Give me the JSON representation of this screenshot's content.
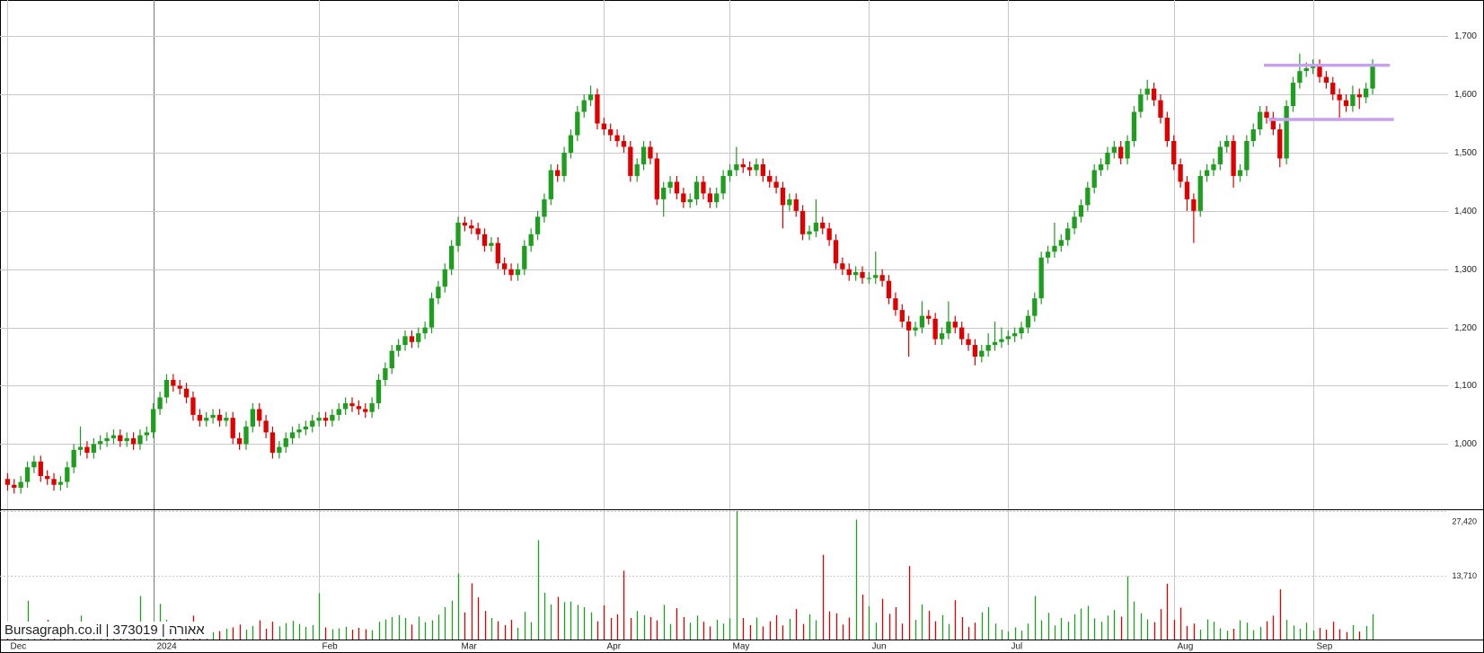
{
  "chart_data": [
    {
      "type": "candlestick",
      "watermark": "Bursagraph.co.il | 373019 | אאורה",
      "xlim": [
        -1.14,
        222.4
      ],
      "xticks": [
        {
          "value": 0,
          "label": "Dec"
        },
        {
          "value": 22,
          "label": "2024"
        },
        {
          "value": 47,
          "label": "Feb"
        },
        {
          "value": 68,
          "label": "Mar"
        },
        {
          "value": 90,
          "label": "Apr"
        },
        {
          "value": 109,
          "label": "May"
        },
        {
          "value": 130,
          "label": "Jun"
        },
        {
          "value": 151,
          "label": "Jul"
        },
        {
          "value": 176,
          "label": "Aug"
        },
        {
          "value": 197,
          "label": "Sep"
        }
      ],
      "ylim": [
        888,
        1762
      ],
      "yticks": [
        {
          "value": 1000,
          "label": "1,000"
        },
        {
          "value": 1100,
          "label": "1,100"
        },
        {
          "value": 1200,
          "label": "1,200"
        },
        {
          "value": 1300,
          "label": "1,300"
        },
        {
          "value": 1400,
          "label": "1,400"
        },
        {
          "value": 1500,
          "label": "1,500"
        },
        {
          "value": 1600,
          "label": "1,600"
        },
        {
          "value": 1700,
          "label": "1,700"
        }
      ],
      "grid": true,
      "up_color": "#1e9e1e",
      "down_color": "#e00000",
      "level_color": "#c8a0f0",
      "levels": [
        {
          "value": 1650,
          "from": 189.6,
          "to": 208.6
        },
        {
          "value": 1557,
          "from": 190.3,
          "to": 209.2
        }
      ],
      "open": [
        940,
        930,
        925,
        935,
        960,
        970,
        945,
        940,
        930,
        935,
        960,
        990,
        995,
        985,
        1000,
        1005,
        1010,
        1015,
        1005,
        1010,
        1000,
        1015,
        1020,
        1060,
        1080,
        1110,
        1100,
        1095,
        1080,
        1050,
        1040,
        1045,
        1050,
        1040,
        1045,
        1010,
        1000,
        1030,
        1060,
        1040,
        1020,
        985,
        995,
        1010,
        1020,
        1025,
        1030,
        1040,
        1045,
        1040,
        1050,
        1060,
        1070,
        1065,
        1060,
        1055,
        1070,
        1110,
        1130,
        1160,
        1170,
        1185,
        1175,
        1190,
        1200,
        1250,
        1270,
        1300,
        1340,
        1380,
        1375,
        1370,
        1360,
        1340,
        1345,
        1310,
        1300,
        1290,
        1300,
        1340,
        1360,
        1390,
        1420,
        1470,
        1460,
        1500,
        1530,
        1570,
        1590,
        1600,
        1550,
        1540,
        1530,
        1520,
        1510,
        1460,
        1480,
        1510,
        1490,
        1420,
        1440,
        1450,
        1430,
        1415,
        1420,
        1450,
        1430,
        1415,
        1430,
        1460,
        1470,
        1480,
        1475,
        1470,
        1480,
        1460,
        1450,
        1440,
        1410,
        1420,
        1400,
        1360,
        1365,
        1380,
        1370,
        1350,
        1310,
        1300,
        1290,
        1295,
        1285,
        1285,
        1290,
        1280,
        1250,
        1230,
        1210,
        1195,
        1200,
        1220,
        1215,
        1180,
        1190,
        1210,
        1200,
        1180,
        1170,
        1150,
        1160,
        1170,
        1175,
        1180,
        1185,
        1190,
        1200,
        1220,
        1250,
        1320,
        1330,
        1340,
        1350,
        1370,
        1390,
        1410,
        1440,
        1470,
        1480,
        1500,
        1510,
        1490,
        1520,
        1570,
        1600,
        1610,
        1590,
        1560,
        1520,
        1480,
        1450,
        1420,
        1400,
        1460,
        1470,
        1480,
        1510,
        1520,
        1460,
        1470,
        1520,
        1540,
        1570,
        1560,
        1540,
        1490,
        1580,
        1620,
        1640,
        1645,
        1650,
        1630,
        1620,
        1600,
        1590,
        1580,
        1600,
        1595,
        1610
      ],
      "high": [
        950,
        940,
        945,
        970,
        980,
        980,
        955,
        950,
        945,
        970,
        1000,
        1030,
        1005,
        1010,
        1015,
        1020,
        1025,
        1025,
        1020,
        1020,
        1025,
        1030,
        1070,
        1090,
        1120,
        1120,
        1110,
        1105,
        1090,
        1060,
        1055,
        1060,
        1060,
        1055,
        1055,
        1020,
        1040,
        1070,
        1070,
        1050,
        1030,
        1005,
        1020,
        1030,
        1035,
        1040,
        1050,
        1055,
        1055,
        1060,
        1070,
        1080,
        1080,
        1075,
        1070,
        1080,
        1120,
        1140,
        1170,
        1180,
        1195,
        1195,
        1200,
        1210,
        1260,
        1280,
        1310,
        1350,
        1390,
        1390,
        1385,
        1380,
        1370,
        1355,
        1355,
        1320,
        1310,
        1310,
        1350,
        1370,
        1400,
        1430,
        1480,
        1480,
        1510,
        1540,
        1580,
        1600,
        1615,
        1610,
        1560,
        1550,
        1540,
        1530,
        1520,
        1490,
        1520,
        1520,
        1500,
        1450,
        1460,
        1460,
        1440,
        1430,
        1460,
        1460,
        1440,
        1440,
        1470,
        1480,
        1510,
        1490,
        1485,
        1490,
        1490,
        1470,
        1460,
        1450,
        1430,
        1430,
        1410,
        1375,
        1420,
        1390,
        1380,
        1360,
        1320,
        1310,
        1305,
        1305,
        1295,
        1330,
        1300,
        1290,
        1260,
        1240,
        1220,
        1210,
        1245,
        1230,
        1225,
        1200,
        1245,
        1220,
        1210,
        1190,
        1180,
        1170,
        1190,
        1210,
        1200,
        1195,
        1200,
        1210,
        1230,
        1260,
        1330,
        1340,
        1380,
        1360,
        1380,
        1400,
        1420,
        1450,
        1480,
        1490,
        1510,
        1520,
        1520,
        1530,
        1580,
        1610,
        1625,
        1620,
        1600,
        1570,
        1530,
        1490,
        1460,
        1430,
        1470,
        1480,
        1490,
        1520,
        1530,
        1530,
        1480,
        1530,
        1550,
        1580,
        1580,
        1570,
        1550,
        1590,
        1630,
        1670,
        1655,
        1660,
        1660,
        1640,
        1630,
        1610,
        1600,
        1615,
        1610,
        1620,
        1660
      ],
      "low": [
        920,
        915,
        915,
        925,
        950,
        935,
        930,
        920,
        920,
        925,
        950,
        980,
        975,
        975,
        990,
        995,
        1000,
        995,
        995,
        990,
        990,
        1005,
        1010,
        1050,
        1070,
        1090,
        1085,
        1070,
        1040,
        1030,
        1030,
        1035,
        1030,
        1030,
        1000,
        990,
        990,
        1020,
        1030,
        1010,
        975,
        975,
        985,
        1000,
        1010,
        1015,
        1020,
        1030,
        1030,
        1030,
        1040,
        1050,
        1055,
        1050,
        1045,
        1045,
        1060,
        1100,
        1120,
        1150,
        1160,
        1165,
        1165,
        1180,
        1190,
        1240,
        1260,
        1290,
        1330,
        1365,
        1360,
        1350,
        1330,
        1330,
        1300,
        1290,
        1280,
        1280,
        1290,
        1330,
        1350,
        1380,
        1410,
        1450,
        1450,
        1490,
        1520,
        1560,
        1580,
        1540,
        1530,
        1520,
        1510,
        1500,
        1450,
        1450,
        1470,
        1480,
        1410,
        1390,
        1430,
        1420,
        1405,
        1405,
        1410,
        1420,
        1405,
        1405,
        1420,
        1450,
        1460,
        1465,
        1460,
        1460,
        1450,
        1440,
        1430,
        1370,
        1400,
        1390,
        1350,
        1350,
        1355,
        1360,
        1340,
        1300,
        1290,
        1280,
        1280,
        1275,
        1275,
        1275,
        1270,
        1240,
        1220,
        1200,
        1150,
        1185,
        1190,
        1205,
        1170,
        1170,
        1180,
        1190,
        1170,
        1160,
        1135,
        1140,
        1150,
        1160,
        1165,
        1170,
        1175,
        1180,
        1190,
        1210,
        1240,
        1310,
        1320,
        1330,
        1340,
        1360,
        1380,
        1400,
        1430,
        1460,
        1470,
        1490,
        1480,
        1480,
        1510,
        1560,
        1590,
        1580,
        1550,
        1510,
        1470,
        1440,
        1400,
        1345,
        1390,
        1450,
        1460,
        1470,
        1500,
        1440,
        1450,
        1460,
        1510,
        1530,
        1550,
        1530,
        1475,
        1480,
        1570,
        1610,
        1630,
        1635,
        1620,
        1610,
        1590,
        1560,
        1570,
        1570,
        1575,
        1585,
        1600
      ],
      "close": [
        930,
        925,
        935,
        960,
        970,
        945,
        940,
        930,
        935,
        960,
        990,
        995,
        985,
        1000,
        1005,
        1010,
        1015,
        1005,
        1010,
        1000,
        1015,
        1020,
        1060,
        1080,
        1110,
        1100,
        1095,
        1080,
        1050,
        1040,
        1045,
        1050,
        1040,
        1045,
        1010,
        1000,
        1030,
        1060,
        1040,
        1020,
        985,
        995,
        1010,
        1020,
        1025,
        1030,
        1040,
        1045,
        1040,
        1050,
        1060,
        1070,
        1065,
        1060,
        1055,
        1070,
        1110,
        1130,
        1160,
        1170,
        1185,
        1175,
        1190,
        1200,
        1250,
        1270,
        1300,
        1340,
        1380,
        1375,
        1370,
        1360,
        1340,
        1345,
        1310,
        1300,
        1290,
        1300,
        1340,
        1360,
        1390,
        1420,
        1470,
        1460,
        1500,
        1530,
        1570,
        1590,
        1600,
        1550,
        1540,
        1530,
        1520,
        1510,
        1460,
        1480,
        1510,
        1490,
        1420,
        1440,
        1450,
        1430,
        1415,
        1420,
        1450,
        1430,
        1415,
        1430,
        1460,
        1470,
        1480,
        1475,
        1470,
        1480,
        1460,
        1450,
        1440,
        1410,
        1420,
        1400,
        1360,
        1365,
        1380,
        1370,
        1350,
        1310,
        1300,
        1290,
        1295,
        1285,
        1285,
        1290,
        1280,
        1250,
        1230,
        1210,
        1195,
        1200,
        1220,
        1215,
        1180,
        1190,
        1210,
        1200,
        1180,
        1170,
        1150,
        1160,
        1170,
        1175,
        1180,
        1185,
        1190,
        1200,
        1220,
        1250,
        1320,
        1330,
        1340,
        1350,
        1370,
        1390,
        1410,
        1440,
        1470,
        1480,
        1500,
        1510,
        1490,
        1520,
        1570,
        1600,
        1610,
        1590,
        1560,
        1520,
        1480,
        1450,
        1420,
        1400,
        1460,
        1470,
        1480,
        1510,
        1520,
        1460,
        1470,
        1520,
        1540,
        1570,
        1560,
        1540,
        1490,
        1580,
        1620,
        1640,
        1645,
        1650,
        1630,
        1620,
        1600,
        1590,
        1580,
        1600,
        1595,
        1610,
        1650
      ]
    },
    {
      "type": "volume",
      "ylim": [
        0,
        27420
      ],
      "yticks": [
        {
          "value": 13710,
          "label": "13,710"
        },
        {
          "value": 27420,
          "label": "27,420"
        }
      ],
      "values": [
        1500,
        2200,
        1800,
        8300,
        3000,
        2100,
        4200,
        2600,
        3400,
        2900,
        3800,
        5100,
        2700,
        2400,
        3000,
        1800,
        2200,
        2700,
        3300,
        2500,
        9300,
        2600,
        3500,
        7600,
        4200,
        2800,
        2300,
        3600,
        5100,
        2000,
        1400,
        1600,
        1800,
        2300,
        2600,
        3200,
        2100,
        2900,
        4100,
        2300,
        3800,
        2800,
        3500,
        4000,
        3300,
        2700,
        3100,
        9900,
        2600,
        2200,
        2400,
        2700,
        2100,
        2500,
        2200,
        2000,
        3800,
        4300,
        4800,
        5200,
        4600,
        3200,
        4900,
        3700,
        4100,
        5300,
        6900,
        8300,
        14100,
        5800,
        12000,
        9000,
        6100,
        4600,
        3900,
        3100,
        4200,
        2500,
        5900,
        3700,
        21200,
        10000,
        7500,
        9100,
        8000,
        8100,
        7400,
        6900,
        5800,
        3900,
        7300,
        4600,
        5400,
        14700,
        4600,
        6100,
        5200,
        4800,
        4100,
        7400,
        3300,
        6700,
        4800,
        3600,
        5100,
        3800,
        2800,
        4200,
        3400,
        4500,
        27420,
        4600,
        3100,
        4700,
        2800,
        3900,
        5200,
        3000,
        4400,
        6500,
        3300,
        5400,
        4100,
        18100,
        6000,
        5600,
        3200,
        4700,
        25600,
        9600,
        7100,
        3600,
        8700,
        5500,
        6900,
        3400,
        15700,
        4200,
        7500,
        6100,
        3900,
        5200,
        3300,
        8400,
        4800,
        2700,
        3600,
        5800,
        6900,
        3400,
        2100,
        1700,
        2600,
        1900,
        3400,
        9300,
        4100,
        5700,
        3000,
        4600,
        3800,
        5400,
        6600,
        7200,
        4500,
        3800,
        5100,
        6300,
        4900,
        13500,
        8100,
        5600,
        4300,
        3700,
        6500,
        11900,
        4200,
        6800,
        2900,
        3400,
        2100,
        4300,
        3800,
        2400,
        1900,
        2300,
        4100,
        3600,
        2000,
        2700,
        3900,
        5100,
        10700,
        4200,
        3000,
        2300,
        3600,
        1900,
        2500,
        2100,
        3800,
        2200,
        1600,
        3100,
        1700,
        2900,
        5400
      ]
    }
  ]
}
